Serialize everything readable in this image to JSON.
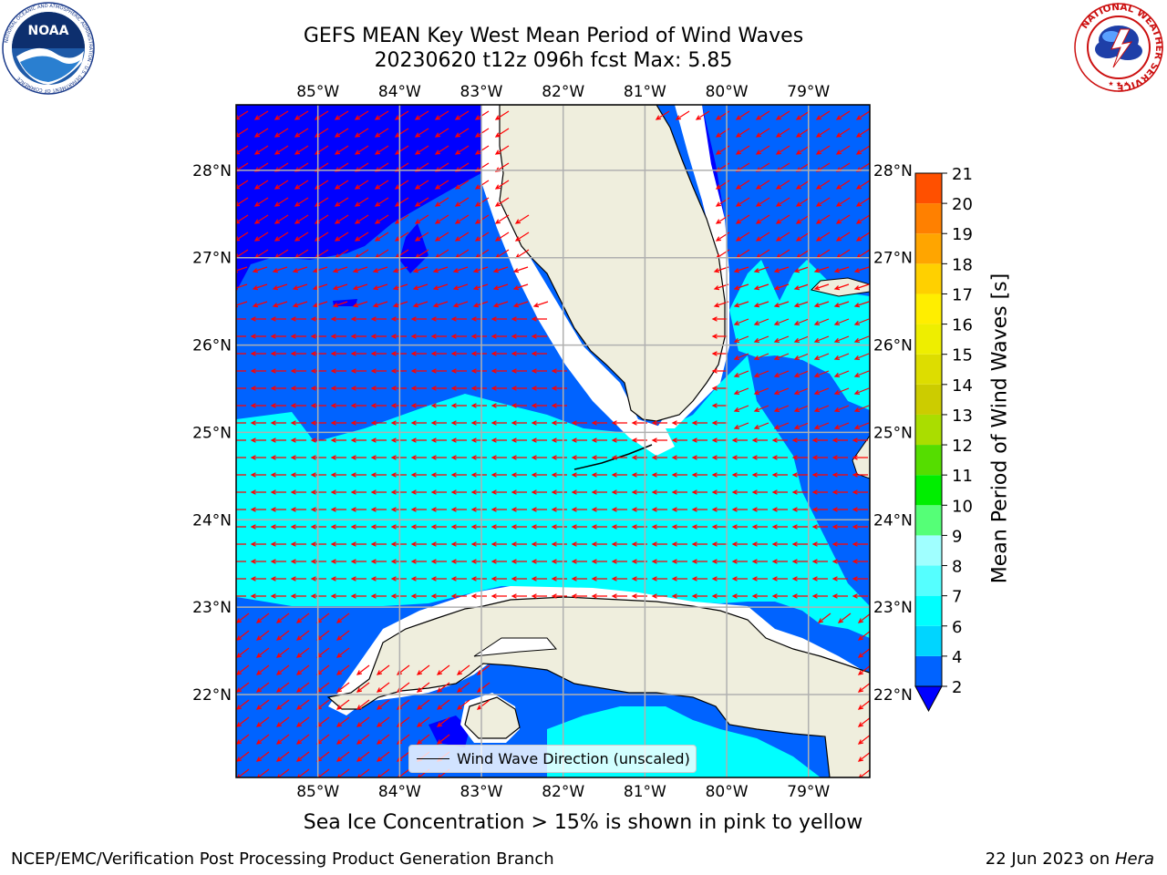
{
  "title": {
    "line1": "GEFS MEAN Key West Mean Period of Wind Waves",
    "line2": "20230620 t12z 096h fcst   Max: 5.85"
  },
  "logos": {
    "left": "noaa-logo",
    "right": "national-weather-service-logo",
    "left_text": "NOAA",
    "left_ring_text": "NATIONAL OCEANIC AND ATMOSPHERIC ADMINISTRATION · U.S. DEPARTMENT OF COMMERCE",
    "right_ring_text": "NATIONAL WEATHER SERVICE"
  },
  "map": {
    "lon_range": [
      -86,
      -78.25
    ],
    "lat_range": [
      21.05,
      28.75
    ],
    "lon_ticks": [
      "85°W",
      "84°W",
      "83°W",
      "82°W",
      "81°W",
      "80°W",
      "79°W"
    ],
    "lon_tick_values": [
      -85,
      -84,
      -83,
      -82,
      -81,
      -80,
      -79
    ],
    "lat_ticks": [
      "22°N",
      "23°N",
      "24°N",
      "25°N",
      "26°N",
      "27°N",
      "28°N"
    ],
    "lat_tick_values": [
      22,
      23,
      24,
      25,
      26,
      27,
      28
    ],
    "grid": true,
    "arrow_color": "#ff0000",
    "land_color": "#efeedd",
    "wind_wave_direction": "mostly from the east-northeast (arrows point west / west-southwest)"
  },
  "colorbar": {
    "label": "Mean Period of Wind Waves [s]",
    "ticks": [
      "2",
      "4",
      "6",
      "7",
      "8",
      "9",
      "10",
      "11",
      "12",
      "13",
      "14",
      "15",
      "16",
      "17",
      "18",
      "19",
      "20",
      "21"
    ],
    "colors": [
      "#0063ff",
      "#00d5ff",
      "#00ffff",
      "#55ffff",
      "#a0ffff",
      "#55ff77",
      "#00ee00",
      "#55dd00",
      "#aadd00",
      "#cccc00",
      "#dddd00",
      "#eeee00",
      "#ffee00",
      "#ffd000",
      "#ffa500",
      "#ff8000",
      "#ff5000",
      "#ff2000",
      "#ff0000"
    ],
    "under_color": "#0000ff"
  },
  "chart_data": {
    "type": "heatmap",
    "title": "GEFS MEAN Key West Mean Period of Wind Waves",
    "subtitle": "20230620 t12z 096h fcst   Max: 5.85",
    "variable": "Mean Period of Wind Waves [s]",
    "max": 5.85,
    "xlim": [
      -86,
      -78.25
    ],
    "ylim": [
      21.05,
      28.75
    ],
    "levels": [
      2,
      4,
      6,
      7,
      8,
      9,
      10,
      11,
      12,
      13,
      14,
      15,
      16,
      17,
      18,
      19,
      20,
      21
    ],
    "regions": [
      {
        "area": "NE Gulf of Mexico (north of 27°N, west of 83°W)",
        "range": "< 2"
      },
      {
        "area": "Eastern Gulf of Mexico 25°N–27°N",
        "range": "2–4"
      },
      {
        "area": "Florida Straits 23.2°N–25°N",
        "range": "4–6"
      },
      {
        "area": "Atlantic east of Florida 25.5°N–27°N",
        "range": "4–6"
      },
      {
        "area": "Off NE Florida coast",
        "range": "< 2"
      },
      {
        "area": "South of Cuba",
        "range": "2–4"
      }
    ]
  },
  "legend": {
    "label": "Wind Wave Direction (unscaled)"
  },
  "ice_note": "Sea Ice Concentration > 15% is shown in pink to yellow",
  "footer": {
    "left": "NCEP/EMC/Verification Post Processing Product Generation Branch",
    "date": "22 Jun 2023 on ",
    "machine": "Hera"
  }
}
